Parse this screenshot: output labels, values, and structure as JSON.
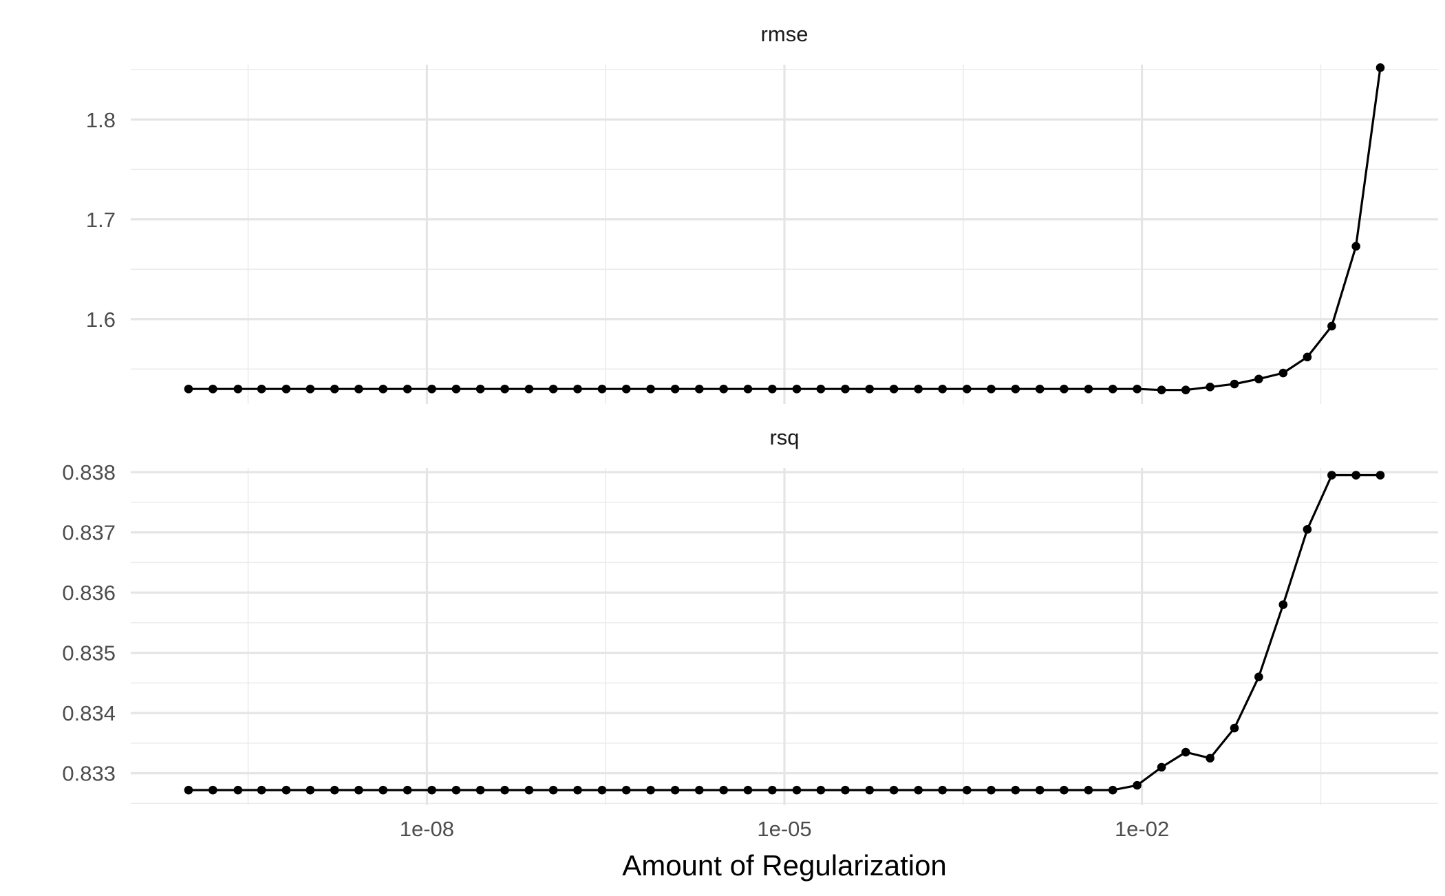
{
  "chart_data": [
    {
      "type": "line",
      "title": "rmse",
      "xlabel": "Amount of Regularization",
      "x_scale": "log10",
      "xlim": [
        1e-10,
        1
      ],
      "ylim": [
        1.515,
        1.855
      ],
      "x_ticks": [
        {
          "value": 1e-08,
          "label": "1e-08"
        },
        {
          "value": 1e-05,
          "label": "1e-05"
        },
        {
          "value": 0.01,
          "label": "1e-02"
        }
      ],
      "y_ticks": [
        {
          "value": 1.6,
          "label": "1.6"
        },
        {
          "value": 1.7,
          "label": "1.7"
        },
        {
          "value": 1.8,
          "label": "1.8"
        }
      ],
      "grid": true,
      "series": [
        {
          "color": "#000000",
          "x": [
            1e-10,
            1.6e-10,
            2.6e-10,
            4.1e-10,
            6.6e-10,
            1.05e-09,
            1.68e-09,
            2.68e-09,
            4.29e-09,
            6.87e-09,
            1.1e-08,
            1.76e-08,
            2.81e-08,
            4.5e-08,
            7.2e-08,
            1.15e-07,
            1.84e-07,
            2.95e-07,
            4.71e-07,
            7.54e-07,
            1.21e-06,
            1.93e-06,
            3.09e-06,
            4.94e-06,
            7.91e-06,
            1.27e-05,
            2.02e-05,
            3.24e-05,
            5.18e-05,
            8.29e-05,
            0.000133,
            0.000212,
            0.00034,
            0.000543,
            0.000869,
            0.00139,
            0.00222,
            0.00356,
            0.00569,
            0.00911,
            0.0146,
            0.0233,
            0.0373,
            0.0597,
            0.0955,
            0.153,
            0.244,
            0.391,
            0.625,
            1
          ],
          "y": [
            1.53,
            1.53,
            1.53,
            1.53,
            1.53,
            1.53,
            1.53,
            1.53,
            1.53,
            1.53,
            1.53,
            1.53,
            1.53,
            1.53,
            1.53,
            1.53,
            1.53,
            1.53,
            1.53,
            1.53,
            1.53,
            1.53,
            1.53,
            1.53,
            1.53,
            1.53,
            1.53,
            1.53,
            1.53,
            1.53,
            1.53,
            1.53,
            1.53,
            1.53,
            1.53,
            1.53,
            1.53,
            1.53,
            1.53,
            1.53,
            1.529,
            1.529,
            1.532,
            1.535,
            1.54,
            1.546,
            1.562,
            1.593,
            1.673,
            1.852
          ]
        }
      ]
    },
    {
      "type": "line",
      "title": "rsq",
      "xlabel": "Amount of Regularization",
      "x_scale": "log10",
      "xlim": [
        1e-10,
        1
      ],
      "ylim": [
        0.83247,
        0.83807
      ],
      "x_ticks": [
        {
          "value": 1e-08,
          "label": "1e-08"
        },
        {
          "value": 1e-05,
          "label": "1e-05"
        },
        {
          "value": 0.01,
          "label": "1e-02"
        }
      ],
      "y_ticks": [
        {
          "value": 0.833,
          "label": "0.833"
        },
        {
          "value": 0.834,
          "label": "0.834"
        },
        {
          "value": 0.835,
          "label": "0.835"
        },
        {
          "value": 0.836,
          "label": "0.836"
        },
        {
          "value": 0.837,
          "label": "0.837"
        },
        {
          "value": 0.838,
          "label": "0.838"
        }
      ],
      "grid": true,
      "series": [
        {
          "color": "#000000",
          "x": [
            1e-10,
            1.6e-10,
            2.6e-10,
            4.1e-10,
            6.6e-10,
            1.05e-09,
            1.68e-09,
            2.68e-09,
            4.29e-09,
            6.87e-09,
            1.1e-08,
            1.76e-08,
            2.81e-08,
            4.5e-08,
            7.2e-08,
            1.15e-07,
            1.84e-07,
            2.95e-07,
            4.71e-07,
            7.54e-07,
            1.21e-06,
            1.93e-06,
            3.09e-06,
            4.94e-06,
            7.91e-06,
            1.27e-05,
            2.02e-05,
            3.24e-05,
            5.18e-05,
            8.29e-05,
            0.000133,
            0.000212,
            0.00034,
            0.000543,
            0.000869,
            0.00139,
            0.00222,
            0.00356,
            0.00569,
            0.00911,
            0.0146,
            0.0233,
            0.0373,
            0.0597,
            0.0955,
            0.153,
            0.244,
            0.391,
            0.625,
            1
          ],
          "y": [
            0.83272,
            0.83272,
            0.83272,
            0.83272,
            0.83272,
            0.83272,
            0.83272,
            0.83272,
            0.83272,
            0.83272,
            0.83272,
            0.83272,
            0.83272,
            0.83272,
            0.83272,
            0.83272,
            0.83272,
            0.83272,
            0.83272,
            0.83272,
            0.83272,
            0.83272,
            0.83272,
            0.83272,
            0.83272,
            0.83272,
            0.83272,
            0.83272,
            0.83272,
            0.83272,
            0.83272,
            0.83272,
            0.83272,
            0.83272,
            0.83272,
            0.83272,
            0.83272,
            0.83272,
            0.83272,
            0.8328,
            0.8331,
            0.83335,
            0.83325,
            0.83375,
            0.8346,
            0.8358,
            0.83705,
            0.83795,
            0.83795,
            0.83795
          ]
        }
      ]
    }
  ]
}
